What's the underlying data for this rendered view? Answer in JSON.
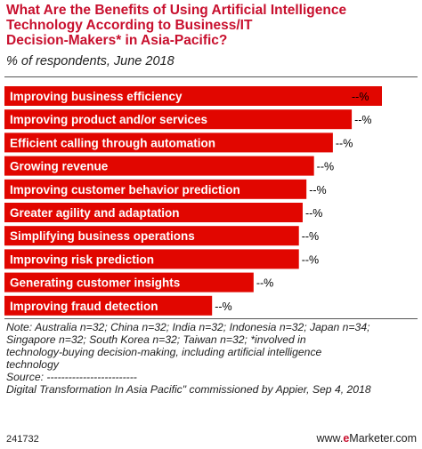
{
  "header": {
    "title_lines": [
      "What Are the Benefits of Using Artificial Intelligence",
      "Technology According to Business/IT",
      "Decision-Makers* in Asia-Pacific?"
    ],
    "subtitle": "% of respondents, June 2018"
  },
  "chart_data": {
    "type": "bar",
    "orientation": "horizontal",
    "categories": [
      "Improving business efficiency",
      "Improving product and/or services",
      "Efficient calling through automation",
      "Growing revenue",
      "Improving customer behavior prediction",
      "Greater agility and adaptation",
      "Simplifying business operations",
      "Improving risk prediction",
      "Generating customer insights",
      "Improving fraud detection"
    ],
    "values": [
      100,
      92,
      87,
      82,
      80,
      79,
      78,
      78,
      66,
      55
    ],
    "value_labels": [
      "--%",
      "--%",
      "--%",
      "--%",
      "--%",
      "--%",
      "--%",
      "--%",
      "--%",
      "--%"
    ],
    "bar_color": "#e10600",
    "label_color": "#ffffff",
    "title_color": "#c8102e"
  },
  "footer": {
    "notes": [
      "Note: Australia n=32; China n=32; India n=32; Indonesia n=32; Japan n=34;",
      "Singapore n=32; South Korea n=32; Taiwan n=32; *involved in",
      "technology-buying decision-making, including artificial intelligence",
      "technology",
      "Source: -------------------------",
      "Digital Transformation In Asia Pacific\" commissioned by Appier, Sep 4, 2018"
    ],
    "chart_id": "241732",
    "brand_prefix": "www.",
    "brand_e": "e",
    "brand_suffix": "Marketer.com"
  }
}
